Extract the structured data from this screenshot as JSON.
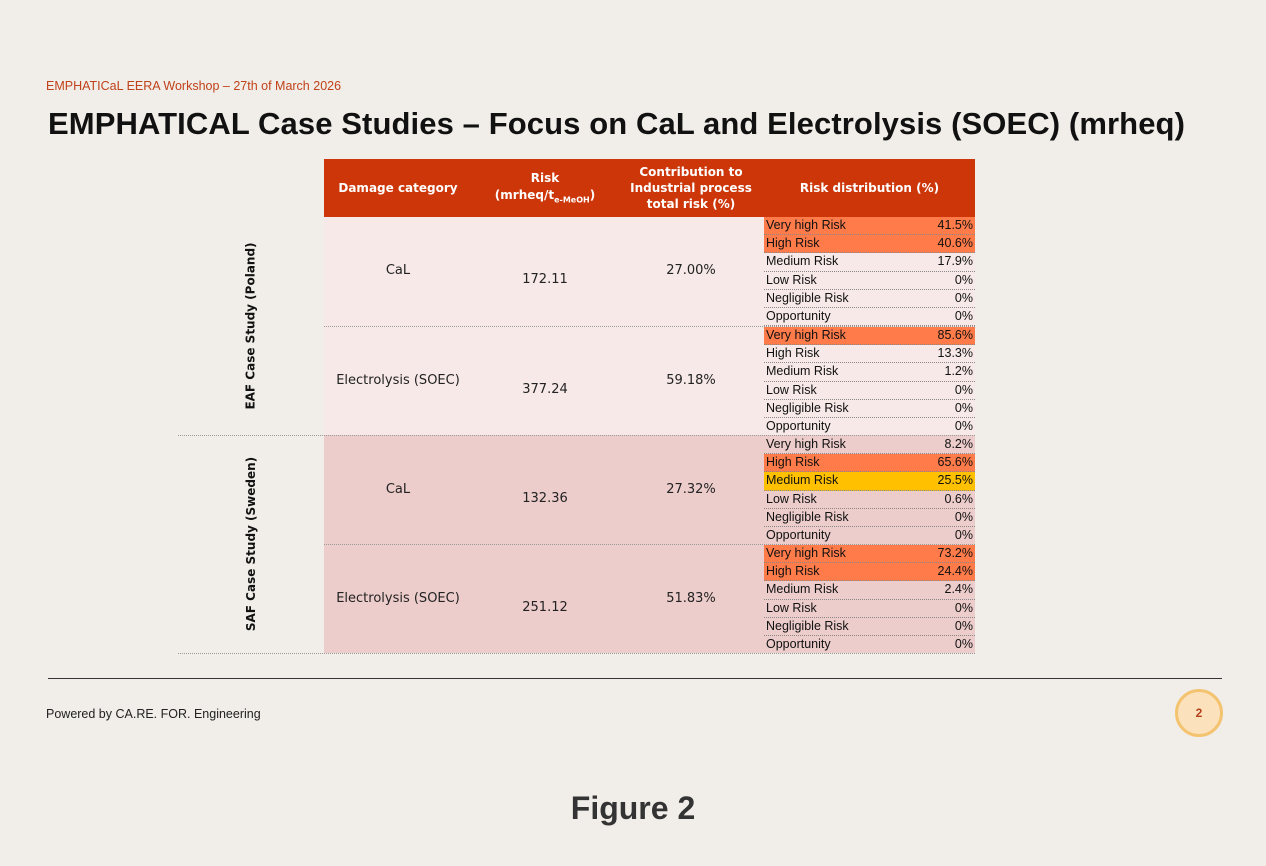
{
  "slide": {
    "workshop_label": "EMPHATICaL EERA Workshop – 27th of March 2026",
    "title": "EMPHATICAL Case Studies – Focus on CaL and Electrolysis (SOEC) (mrheq)",
    "footer": "Powered by CA.RE. FOR. Engineering",
    "page_number": "2",
    "caption": "Figure 2"
  },
  "table": {
    "headers": {
      "damage_category": "Damage category",
      "risk_line1": "Risk",
      "risk_line2": "(mrheq/t",
      "risk_sub": "e-MeOH",
      "risk_close": ")",
      "contribution_line1": "Contribution to",
      "contribution_line2": "Industrial process",
      "contribution_line3": "total risk (%)",
      "distribution": "Risk distribution (%)"
    },
    "groups": [
      {
        "label": "EAF Case Study (Poland)",
        "background": "#f6e9e7",
        "processes": [
          {
            "name": "CaL",
            "risk": "172.11",
            "contribution": "27.00%",
            "distribution": [
              {
                "label": "Very high Risk",
                "value": "41.5%",
                "color": "#ff7b4a"
              },
              {
                "label": "High Risk",
                "value": "40.6%",
                "color": "#ff7b4a"
              },
              {
                "label": "Medium Risk",
                "value": "17.9%",
                "color": ""
              },
              {
                "label": "Low Risk",
                "value": "0%",
                "color": ""
              },
              {
                "label": "Negligible Risk",
                "value": "0%",
                "color": ""
              },
              {
                "label": "Opportunity",
                "value": "0%",
                "color": ""
              }
            ]
          },
          {
            "name": "Electrolysis (SOEC)",
            "risk": "377.24",
            "contribution": "59.18%",
            "distribution": [
              {
                "label": "Very high Risk",
                "value": "85.6%",
                "color": "#ff7b4a"
              },
              {
                "label": "High Risk",
                "value": "13.3%",
                "color": ""
              },
              {
                "label": "Medium Risk",
                "value": "1.2%",
                "color": ""
              },
              {
                "label": "Low Risk",
                "value": "0%",
                "color": ""
              },
              {
                "label": "Negligible Risk",
                "value": "0%",
                "color": ""
              },
              {
                "label": "Opportunity",
                "value": "0%",
                "color": ""
              }
            ]
          }
        ]
      },
      {
        "label": "SAF Case Study (Sweden)",
        "background": "#eccdcb",
        "processes": [
          {
            "name": "CaL",
            "risk": "132.36",
            "contribution": "27.32%",
            "distribution": [
              {
                "label": "Very high Risk",
                "value": "8.2%",
                "color": ""
              },
              {
                "label": "High Risk",
                "value": "65.6%",
                "color": "#ff7b4a"
              },
              {
                "label": "Medium Risk",
                "value": "25.5%",
                "color": "#ffc000"
              },
              {
                "label": "Low Risk",
                "value": "0.6%",
                "color": ""
              },
              {
                "label": "Negligible Risk",
                "value": "0%",
                "color": ""
              },
              {
                "label": "Opportunity",
                "value": "0%",
                "color": ""
              }
            ]
          },
          {
            "name": "Electrolysis (SOEC)",
            "risk": "251.12",
            "contribution": "51.83%",
            "distribution": [
              {
                "label": "Very high Risk",
                "value": "73.2%",
                "color": "#ff7b4a"
              },
              {
                "label": "High Risk",
                "value": "24.4%",
                "color": "#ff7b4a"
              },
              {
                "label": "Medium Risk",
                "value": "2.4%",
                "color": ""
              },
              {
                "label": "Low Risk",
                "value": "0%",
                "color": ""
              },
              {
                "label": "Negligible Risk",
                "value": "0%",
                "color": ""
              },
              {
                "label": "Opportunity",
                "value": "0%",
                "color": ""
              }
            ]
          }
        ]
      }
    ]
  }
}
